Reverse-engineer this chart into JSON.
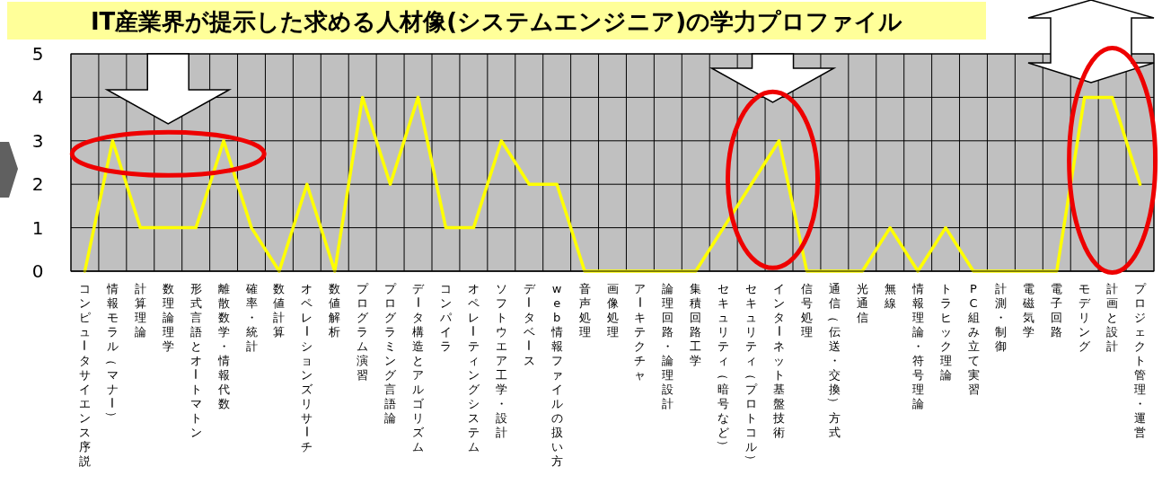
{
  "chart_data": {
    "type": "line",
    "title": "IT産業界が提示した求める人材像(システムエンジニア)の学力プロファイル",
    "categories": [
      "コンピュータサイエンス序説",
      "情報モラル（マナー）",
      "計算理論",
      "数理論理学",
      "形式言語とオートマトン",
      "離散数学・情報代数",
      "確率・統計",
      "数値計算",
      "オペレーションズリサーチ",
      "数値解析",
      "プログラム演習",
      "プログラミング言語論",
      "データ構造とアルゴリズム",
      "コンパイラ",
      "オペレーティングシステム",
      "ソフトウエア工学・設計",
      "データベース",
      "web情報ファイルの扱い方",
      "音声処理",
      "画像処理",
      "アーキテクチャ",
      "論理回路・論理設計",
      "集積回路工学",
      "セキュリティ（暗号など）",
      "セキュリティ（プロトコル）",
      "インターネット基盤技術",
      "信号処理",
      "通信（伝送・交換）方式",
      "光通信",
      "無線",
      "情報理論・符号理論",
      "トラヒック理論",
      "PC組み立て実習",
      "計測・制御",
      "電磁気学",
      "電子回路",
      "モデリング",
      "計画と設計",
      "プロジェクト管理・運営"
    ],
    "values": [
      0,
      3,
      1,
      1,
      1,
      3,
      1,
      0,
      2,
      0,
      4,
      2,
      4,
      1,
      1,
      3,
      2,
      2,
      0,
      0,
      0,
      0,
      0,
      1,
      2,
      3,
      0,
      0,
      0,
      1,
      0,
      1,
      0,
      0,
      0,
      0,
      4,
      4,
      2
    ],
    "color": "#ffff00",
    "ylim": [
      0,
      5
    ],
    "yticks": [
      0,
      1,
      2,
      3,
      4,
      5
    ],
    "grid": true
  }
}
